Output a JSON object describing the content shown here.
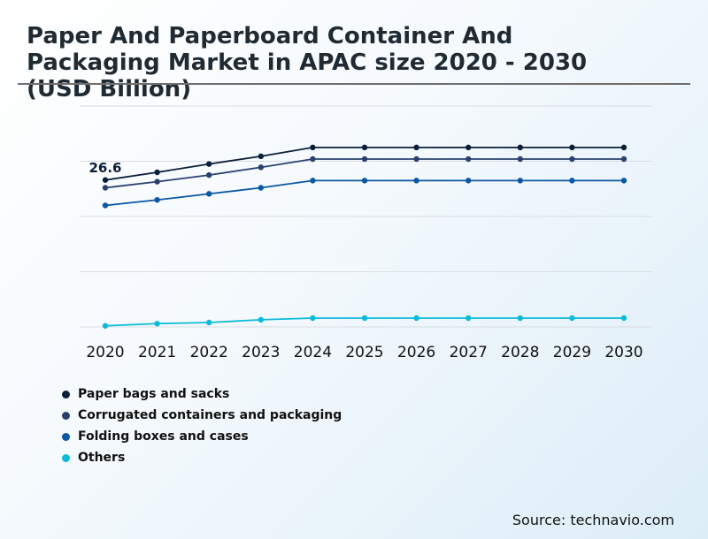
{
  "chart_data": {
    "type": "line",
    "title": "Paper And Paperboard Container And Packaging Market in APAC size 2020 - 2030 (USD Billion)",
    "x": [
      "2020",
      "2021",
      "2022",
      "2023",
      "2024",
      "2025",
      "2026",
      "2027",
      "2028",
      "2029",
      "2030"
    ],
    "ylim": [
      0,
      40
    ],
    "grid": true,
    "legend": "bottom-left",
    "series": [
      {
        "name": "Paper bags and sacks",
        "color": "#0b1f3a",
        "values": [
          26.6,
          28.0,
          29.5,
          30.9,
          32.5,
          32.5,
          32.5,
          32.5,
          32.5,
          32.5,
          32.5
        ]
      },
      {
        "name": "Corrugated containers and packaging",
        "color": "#2a4170",
        "values": [
          25.2,
          26.3,
          27.5,
          28.9,
          30.4,
          30.4,
          30.4,
          30.4,
          30.4,
          30.4,
          30.4
        ]
      },
      {
        "name": "Folding boxes and cases",
        "color": "#0a57a3",
        "values": [
          22.0,
          23.0,
          24.1,
          25.2,
          26.5,
          26.5,
          26.5,
          26.5,
          26.5,
          26.5,
          26.5
        ]
      },
      {
        "name": "Others",
        "color": "#0bbbd9",
        "values": [
          0.2,
          0.6,
          0.8,
          1.3,
          1.6,
          1.6,
          1.6,
          1.6,
          1.6,
          1.6,
          1.6
        ]
      }
    ],
    "annotations": [
      {
        "series": 0,
        "index": 0,
        "text": "26.6"
      }
    ]
  },
  "footer": {
    "source": "Source: technavio.com"
  }
}
